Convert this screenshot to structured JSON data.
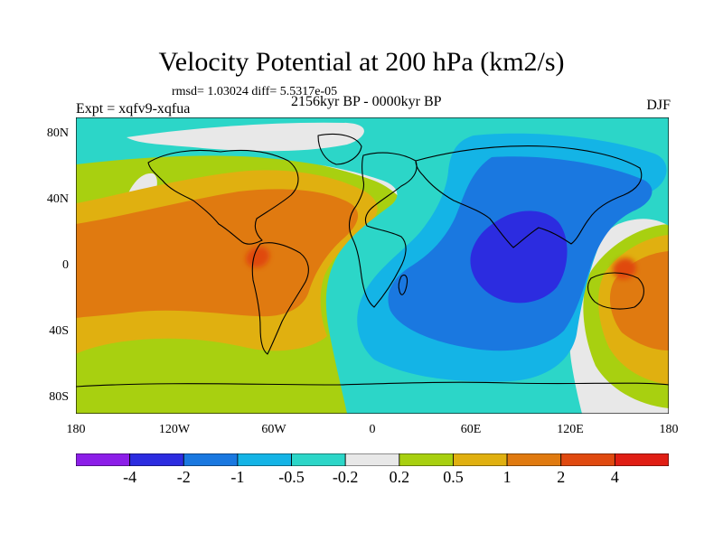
{
  "title": "Velocity Potential at 200 hPa (km2/s)",
  "stats": "rmsd= 1.03024  diff= 5.5317e-05",
  "experiment": "Expt = xqfv9-xqfua",
  "period": "2156kyr BP - 0000kyr BP",
  "season": "DJF",
  "map": {
    "lon_ticks": [
      "180",
      "120W",
      "60W",
      "0",
      "60E",
      "120E",
      "180"
    ],
    "lat_ticks": [
      "80N",
      "40N",
      "0",
      "40S",
      "80S"
    ],
    "field_description": "velocity potential anomaly; positive centre over tropical South America and Australia, negative centre over Indian Ocean/East Africa"
  },
  "colorbar": {
    "colors": [
      "#8c1ee8",
      "#2c2ce0",
      "#1a78e0",
      "#14b4e6",
      "#2cd6c8",
      "#e8e8e8",
      "#a8d010",
      "#e0b010",
      "#e07a10",
      "#e04a10",
      "#e01e14"
    ],
    "labels": [
      "-4",
      "-2",
      "-1",
      "-0.5",
      "-0.2",
      "0.2",
      "0.5",
      "1",
      "2",
      "4"
    ]
  }
}
